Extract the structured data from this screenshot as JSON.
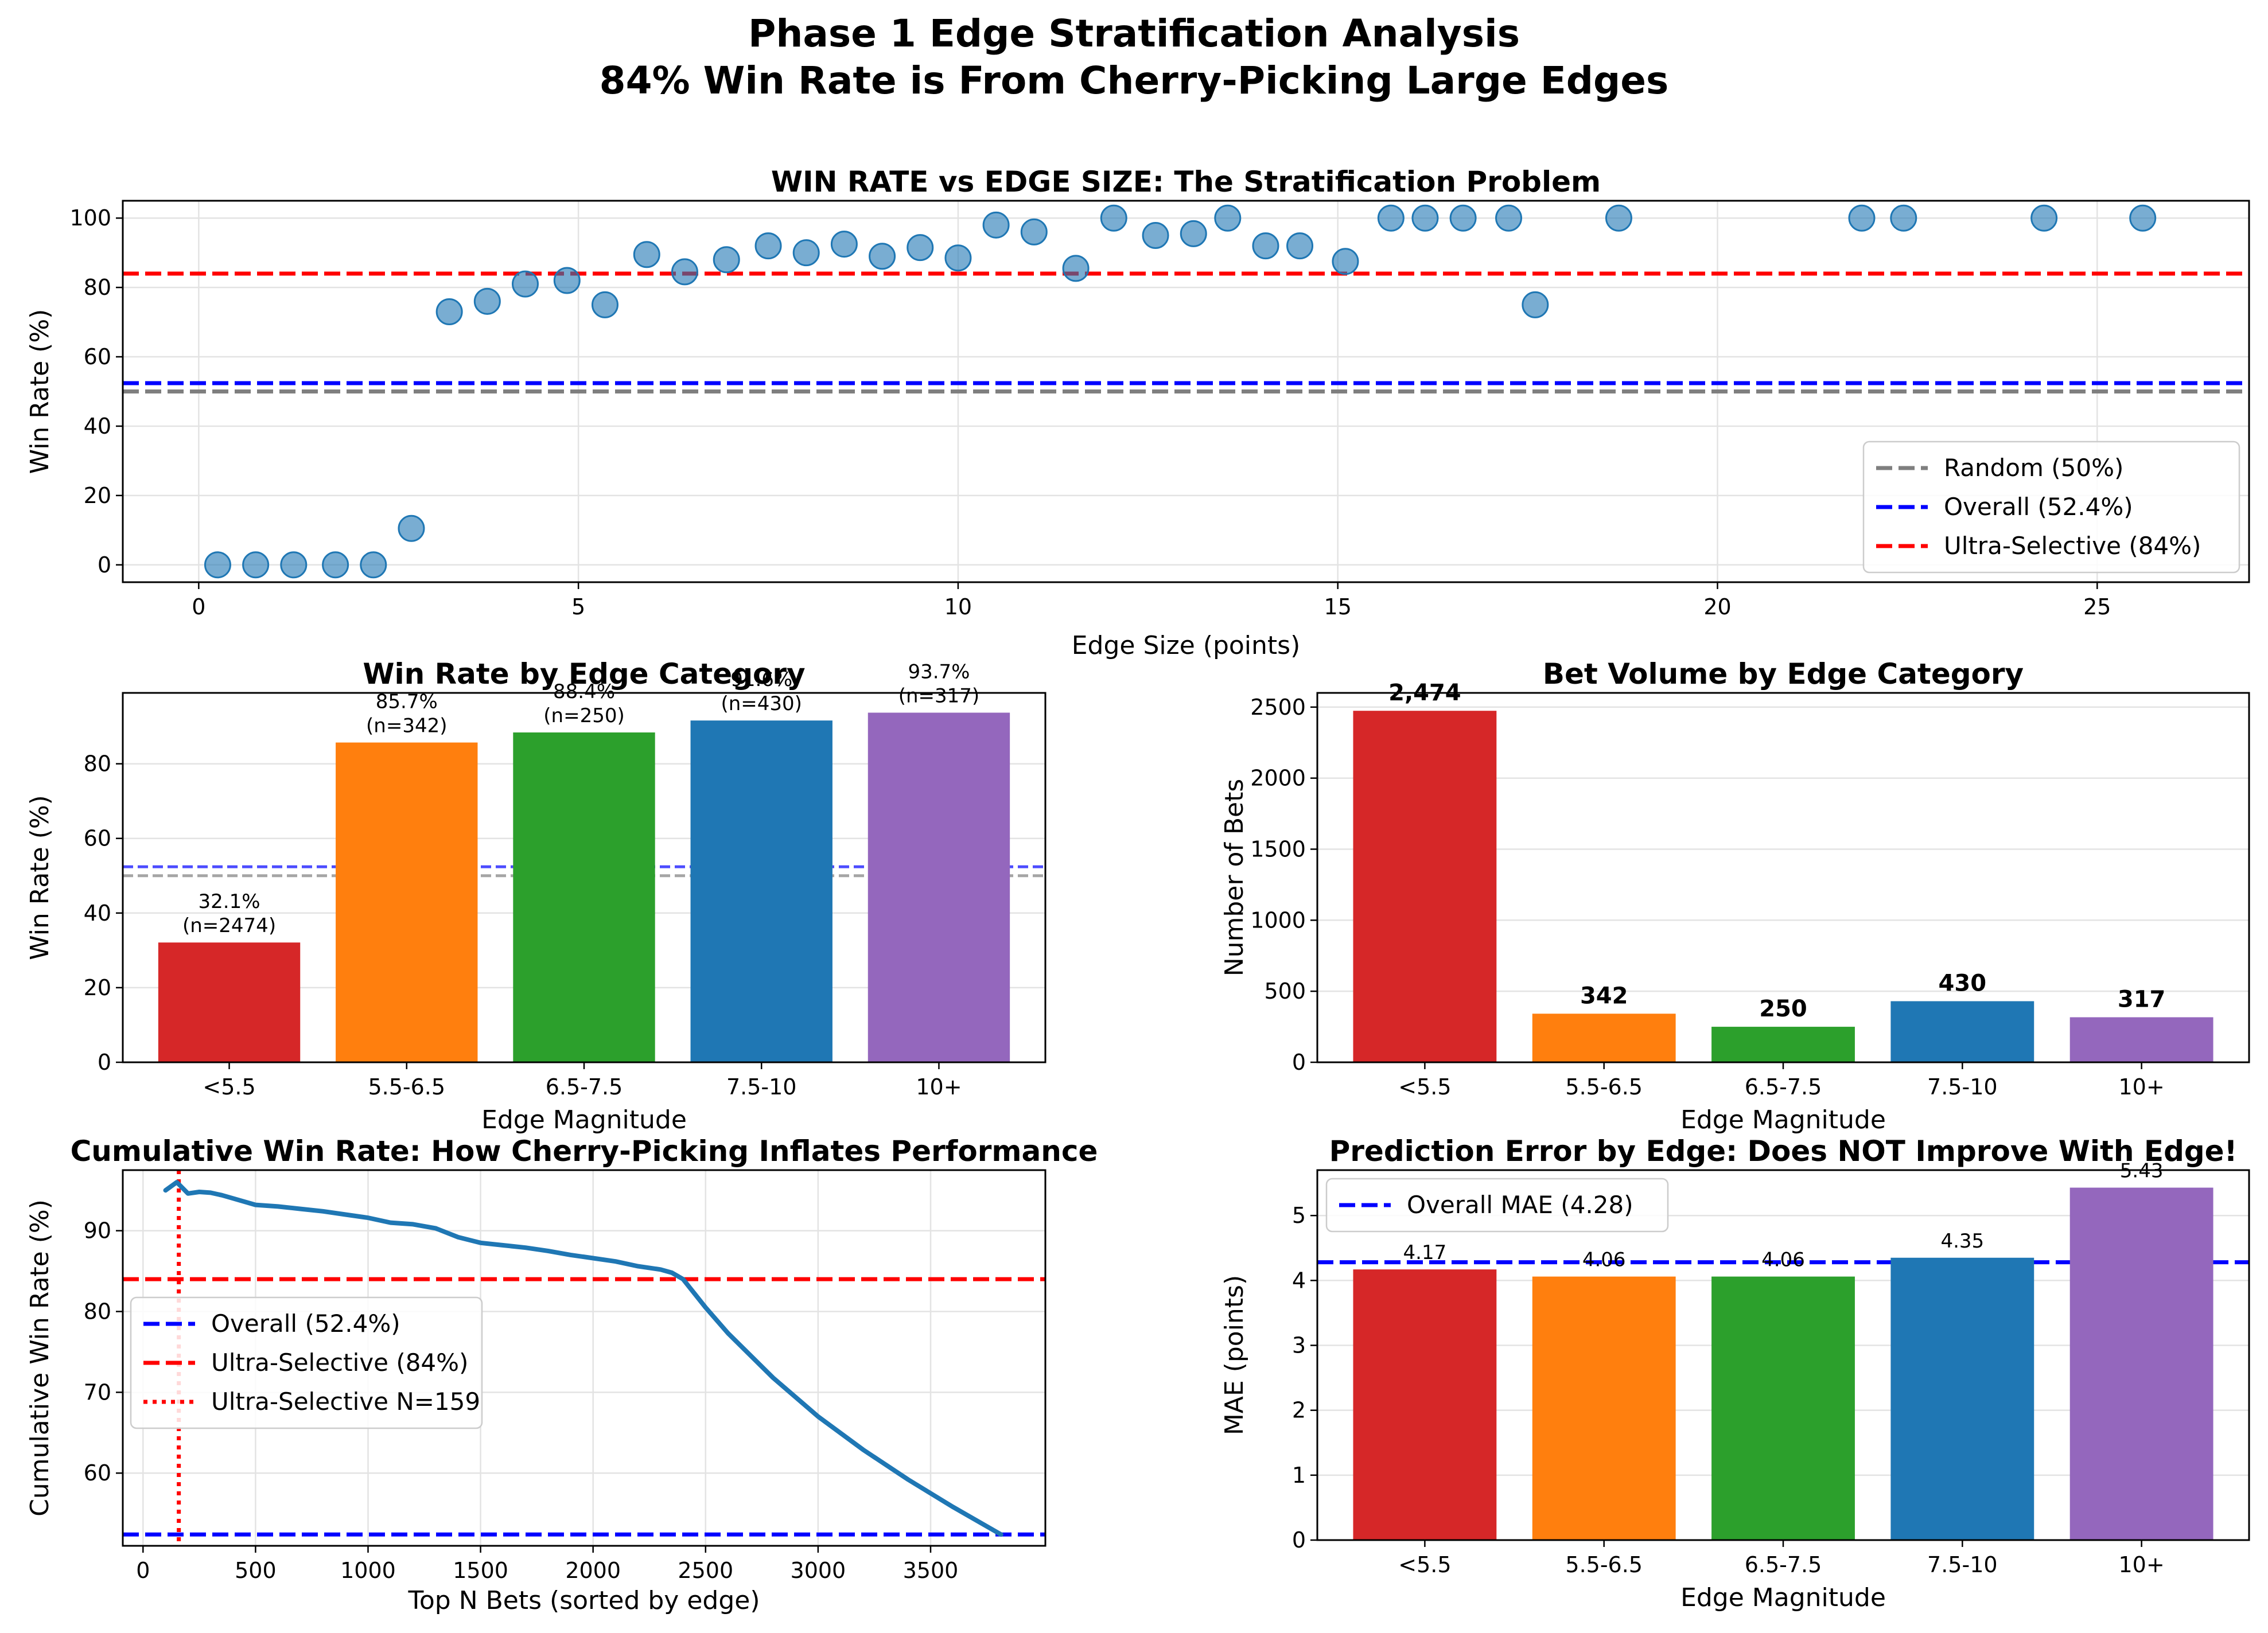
{
  "figure": {
    "title_line1": "Phase 1 Edge Stratification Analysis",
    "title_line2": "84% Win Rate is From Cherry-Picking Large Edges"
  },
  "chart_data": [
    {
      "id": "win-rate-vs-edge",
      "type": "scatter",
      "title": "WIN RATE vs EDGE SIZE: The Stratification Problem",
      "xlabel": "Edge Size (points)",
      "ylabel": "Win Rate (%)",
      "xlim": [
        -1,
        27
      ],
      "ylim": [
        -5,
        105
      ],
      "xticks": [
        0,
        5,
        10,
        15,
        20,
        25
      ],
      "yticks": [
        0,
        20,
        40,
        60,
        80,
        100
      ],
      "grid": true,
      "legend_position": "lower right",
      "points": [
        [
          0.25,
          0
        ],
        [
          0.75,
          0
        ],
        [
          1.25,
          0
        ],
        [
          1.8,
          0
        ],
        [
          2.3,
          0
        ],
        [
          2.8,
          10.5
        ],
        [
          3.3,
          73
        ],
        [
          3.8,
          76
        ],
        [
          4.3,
          81
        ],
        [
          4.85,
          82
        ],
        [
          5.35,
          75
        ],
        [
          5.9,
          89.5
        ],
        [
          6.4,
          84.5
        ],
        [
          6.95,
          88
        ],
        [
          7.5,
          92
        ],
        [
          8.0,
          90
        ],
        [
          8.5,
          92.5
        ],
        [
          9.0,
          89
        ],
        [
          9.5,
          91.5
        ],
        [
          10.0,
          88.5
        ],
        [
          10.5,
          98
        ],
        [
          11.0,
          96
        ],
        [
          11.55,
          85.5
        ],
        [
          12.05,
          100
        ],
        [
          12.6,
          95
        ],
        [
          13.1,
          95.5
        ],
        [
          13.55,
          100
        ],
        [
          14.05,
          92
        ],
        [
          14.5,
          92
        ],
        [
          15.1,
          87.5
        ],
        [
          15.7,
          100
        ],
        [
          16.15,
          100
        ],
        [
          16.65,
          100
        ],
        [
          17.25,
          100
        ],
        [
          17.6,
          75
        ],
        [
          18.7,
          100
        ],
        [
          21.9,
          100
        ],
        [
          22.45,
          100
        ],
        [
          24.3,
          100
        ],
        [
          25.6,
          100
        ]
      ],
      "reference_lines": [
        {
          "name": "Random (50%)",
          "y": 50,
          "color": "#7f7f7f"
        },
        {
          "name": "Overall (52.4%)",
          "y": 52.4,
          "color": "#0000ff"
        },
        {
          "name": "Ultra-Selective (84%)",
          "y": 84,
          "color": "#ff0000"
        }
      ],
      "point_color": "#1f77b4"
    },
    {
      "id": "win-rate-by-category",
      "type": "bar",
      "title": "Win Rate by Edge Category",
      "xlabel": "Edge Magnitude",
      "ylabel": "Win Rate (%)",
      "categories": [
        "<5.5",
        "5.5-6.5",
        "6.5-7.5",
        "7.5-10",
        "10+"
      ],
      "values": [
        32.1,
        85.7,
        88.4,
        91.6,
        93.7
      ],
      "bar_labels": [
        [
          "32.1%",
          "(n=2474)"
        ],
        [
          "85.7%",
          "(n=342)"
        ],
        [
          "88.4%",
          "(n=250)"
        ],
        [
          "91.6%",
          "(n=430)"
        ],
        [
          "93.7%",
          "(n=317)"
        ]
      ],
      "ylim": [
        0,
        99
      ],
      "yticks": [
        0,
        20,
        40,
        60,
        80
      ],
      "reference_lines": [
        {
          "y": 50,
          "color": "#7f7f7f"
        },
        {
          "y": 52.4,
          "color": "#0000ff"
        }
      ],
      "colors": [
        "#d62728",
        "#ff7f0e",
        "#2ca02c",
        "#1f77b4",
        "#9467bd"
      ]
    },
    {
      "id": "bet-volume-by-category",
      "type": "bar",
      "title": "Bet Volume by Edge Category",
      "xlabel": "Edge Magnitude",
      "ylabel": "Number of Bets",
      "categories": [
        "<5.5",
        "5.5-6.5",
        "6.5-7.5",
        "7.5-10",
        "10+"
      ],
      "values": [
        2474,
        342,
        250,
        430,
        317
      ],
      "bar_labels": [
        "2,474",
        "342",
        "250",
        "430",
        "317"
      ],
      "ylim": [
        0,
        2600
      ],
      "yticks": [
        0,
        500,
        1000,
        1500,
        2000,
        2500
      ],
      "colors": [
        "#d62728",
        "#ff7f0e",
        "#2ca02c",
        "#1f77b4",
        "#9467bd"
      ]
    },
    {
      "id": "cumulative-win-rate",
      "type": "line",
      "title": "Cumulative Win Rate: How Cherry-Picking Inflates Performance",
      "xlabel": "Top N Bets (sorted by edge)",
      "ylabel": "Cumulative Win Rate (%)",
      "xlim": [
        -90,
        4010
      ],
      "ylim": [
        51,
        97.5
      ],
      "xticks": [
        0,
        500,
        1000,
        1500,
        2000,
        2500,
        3000,
        3500
      ],
      "yticks": [
        60,
        70,
        80,
        90
      ],
      "grid": true,
      "legend_position": "center left",
      "x": [
        100,
        150,
        200,
        250,
        300,
        350,
        400,
        500,
        600,
        700,
        800,
        900,
        1000,
        1100,
        1200,
        1300,
        1400,
        1500,
        1600,
        1700,
        1800,
        1900,
        2000,
        2100,
        2200,
        2300,
        2350,
        2400,
        2500,
        2600,
        2800,
        3000,
        3200,
        3400,
        3600,
        3813
      ],
      "y": [
        95.0,
        96.0,
        94.6,
        94.8,
        94.7,
        94.4,
        94.0,
        93.2,
        93.0,
        92.7,
        92.4,
        92.0,
        91.6,
        91.0,
        90.8,
        90.3,
        89.2,
        88.5,
        88.2,
        87.9,
        87.5,
        87.0,
        86.6,
        86.2,
        85.6,
        85.2,
        84.8,
        84.0,
        80.5,
        77.3,
        71.8,
        67.0,
        62.9,
        59.2,
        55.8,
        52.4
      ],
      "reference_lines": [
        {
          "name": "Overall (52.4%)",
          "y": 52.4,
          "color": "#0000ff"
        },
        {
          "name": "Ultra-Selective (84%)",
          "y": 84,
          "color": "#ff0000"
        }
      ],
      "vertical_lines": [
        {
          "name": "Ultra-Selective N=159",
          "x": 159,
          "color": "#ff0000"
        }
      ],
      "line_color": "#1f77b4"
    },
    {
      "id": "prediction-error-by-edge",
      "type": "bar",
      "title": "Prediction Error by Edge: Does NOT Improve With Edge!",
      "xlabel": "Edge Magnitude",
      "ylabel": "MAE (points)",
      "categories": [
        "<5.5",
        "5.5-6.5",
        "6.5-7.5",
        "7.5-10",
        "10+"
      ],
      "values": [
        4.17,
        4.06,
        4.06,
        4.35,
        5.43
      ],
      "bar_labels": [
        "4.17",
        "4.06",
        "4.06",
        "4.35",
        "5.43"
      ],
      "ylim": [
        0,
        5.7
      ],
      "yticks": [
        0,
        1,
        2,
        3,
        4,
        5
      ],
      "legend_position": "upper left",
      "reference_lines": [
        {
          "name": "Overall MAE (4.28)",
          "y": 4.28,
          "color": "#0000ff"
        }
      ],
      "colors": [
        "#d62728",
        "#ff7f0e",
        "#2ca02c",
        "#1f77b4",
        "#9467bd"
      ]
    }
  ]
}
